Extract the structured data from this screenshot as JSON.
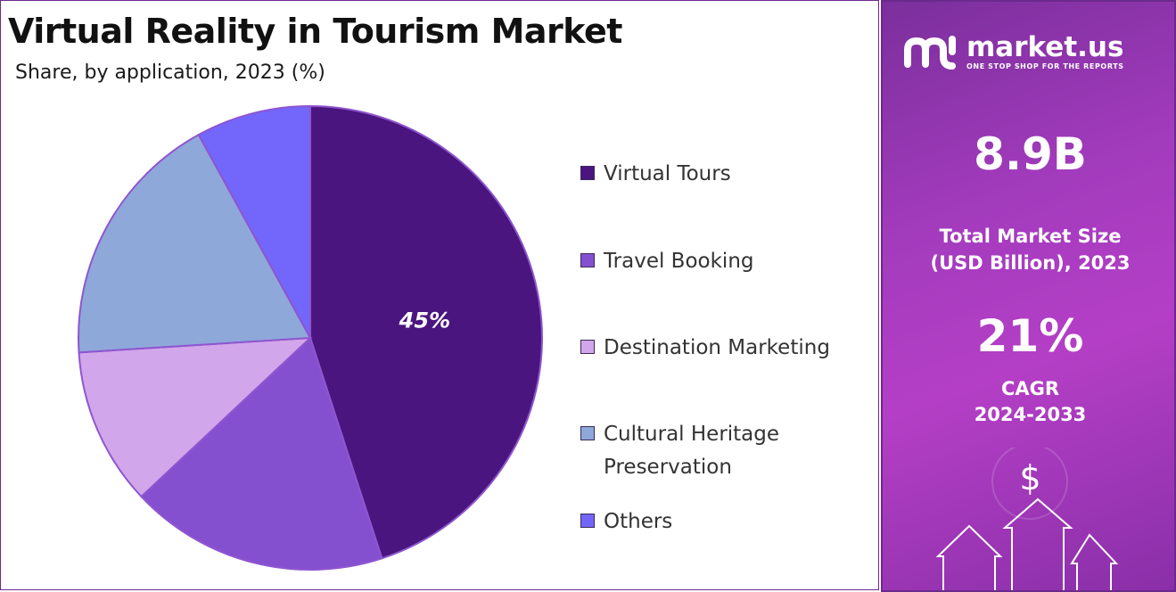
{
  "chart_data": {
    "type": "pie",
    "title": "Virtual Reality in Tourism Market",
    "subtitle": "Share, by application, 2023 (%)",
    "categories": [
      "Virtual Tours",
      "Travel Booking",
      "Destination Marketing",
      "Cultural Heritage Preservation",
      "Others"
    ],
    "values": [
      45,
      18,
      11,
      18,
      8
    ],
    "data_labels": [
      "45%",
      "",
      "",
      "",
      ""
    ],
    "colors": [
      "#4b1580",
      "#8550d0",
      "#d2a6ea",
      "#8ea8da",
      "#7366fa"
    ],
    "legend": "right",
    "legend_entries": [
      {
        "label_lines": [
          "Virtual Tours"
        ],
        "color": "#4b1580"
      },
      {
        "label_lines": [
          "Travel Booking"
        ],
        "color": "#8550d0"
      },
      {
        "label_lines": [
          "Destination Marketing"
        ],
        "color": "#d2a6ea"
      },
      {
        "label_lines": [
          "Cultural Heritage",
          "Preservation"
        ],
        "color": "#8ea8da"
      },
      {
        "label_lines": [
          "Others"
        ],
        "color": "#7366fa"
      }
    ]
  },
  "sidebar": {
    "brand": {
      "name": "market.us",
      "tagline": "ONE STOP SHOP FOR THE REPORTS"
    },
    "market_size": {
      "value": "8.9B",
      "label_line1": "Total Market Size",
      "label_line2": "(USD Billion), 2023"
    },
    "cagr": {
      "value": "21%",
      "label": "CAGR",
      "period": "2024-2033"
    },
    "dollar_symbol": "$",
    "icons": [
      "market-us-logo-icon",
      "dollar-icon",
      "arrow-up-icon"
    ],
    "accent_color": "#a33bbd"
  }
}
